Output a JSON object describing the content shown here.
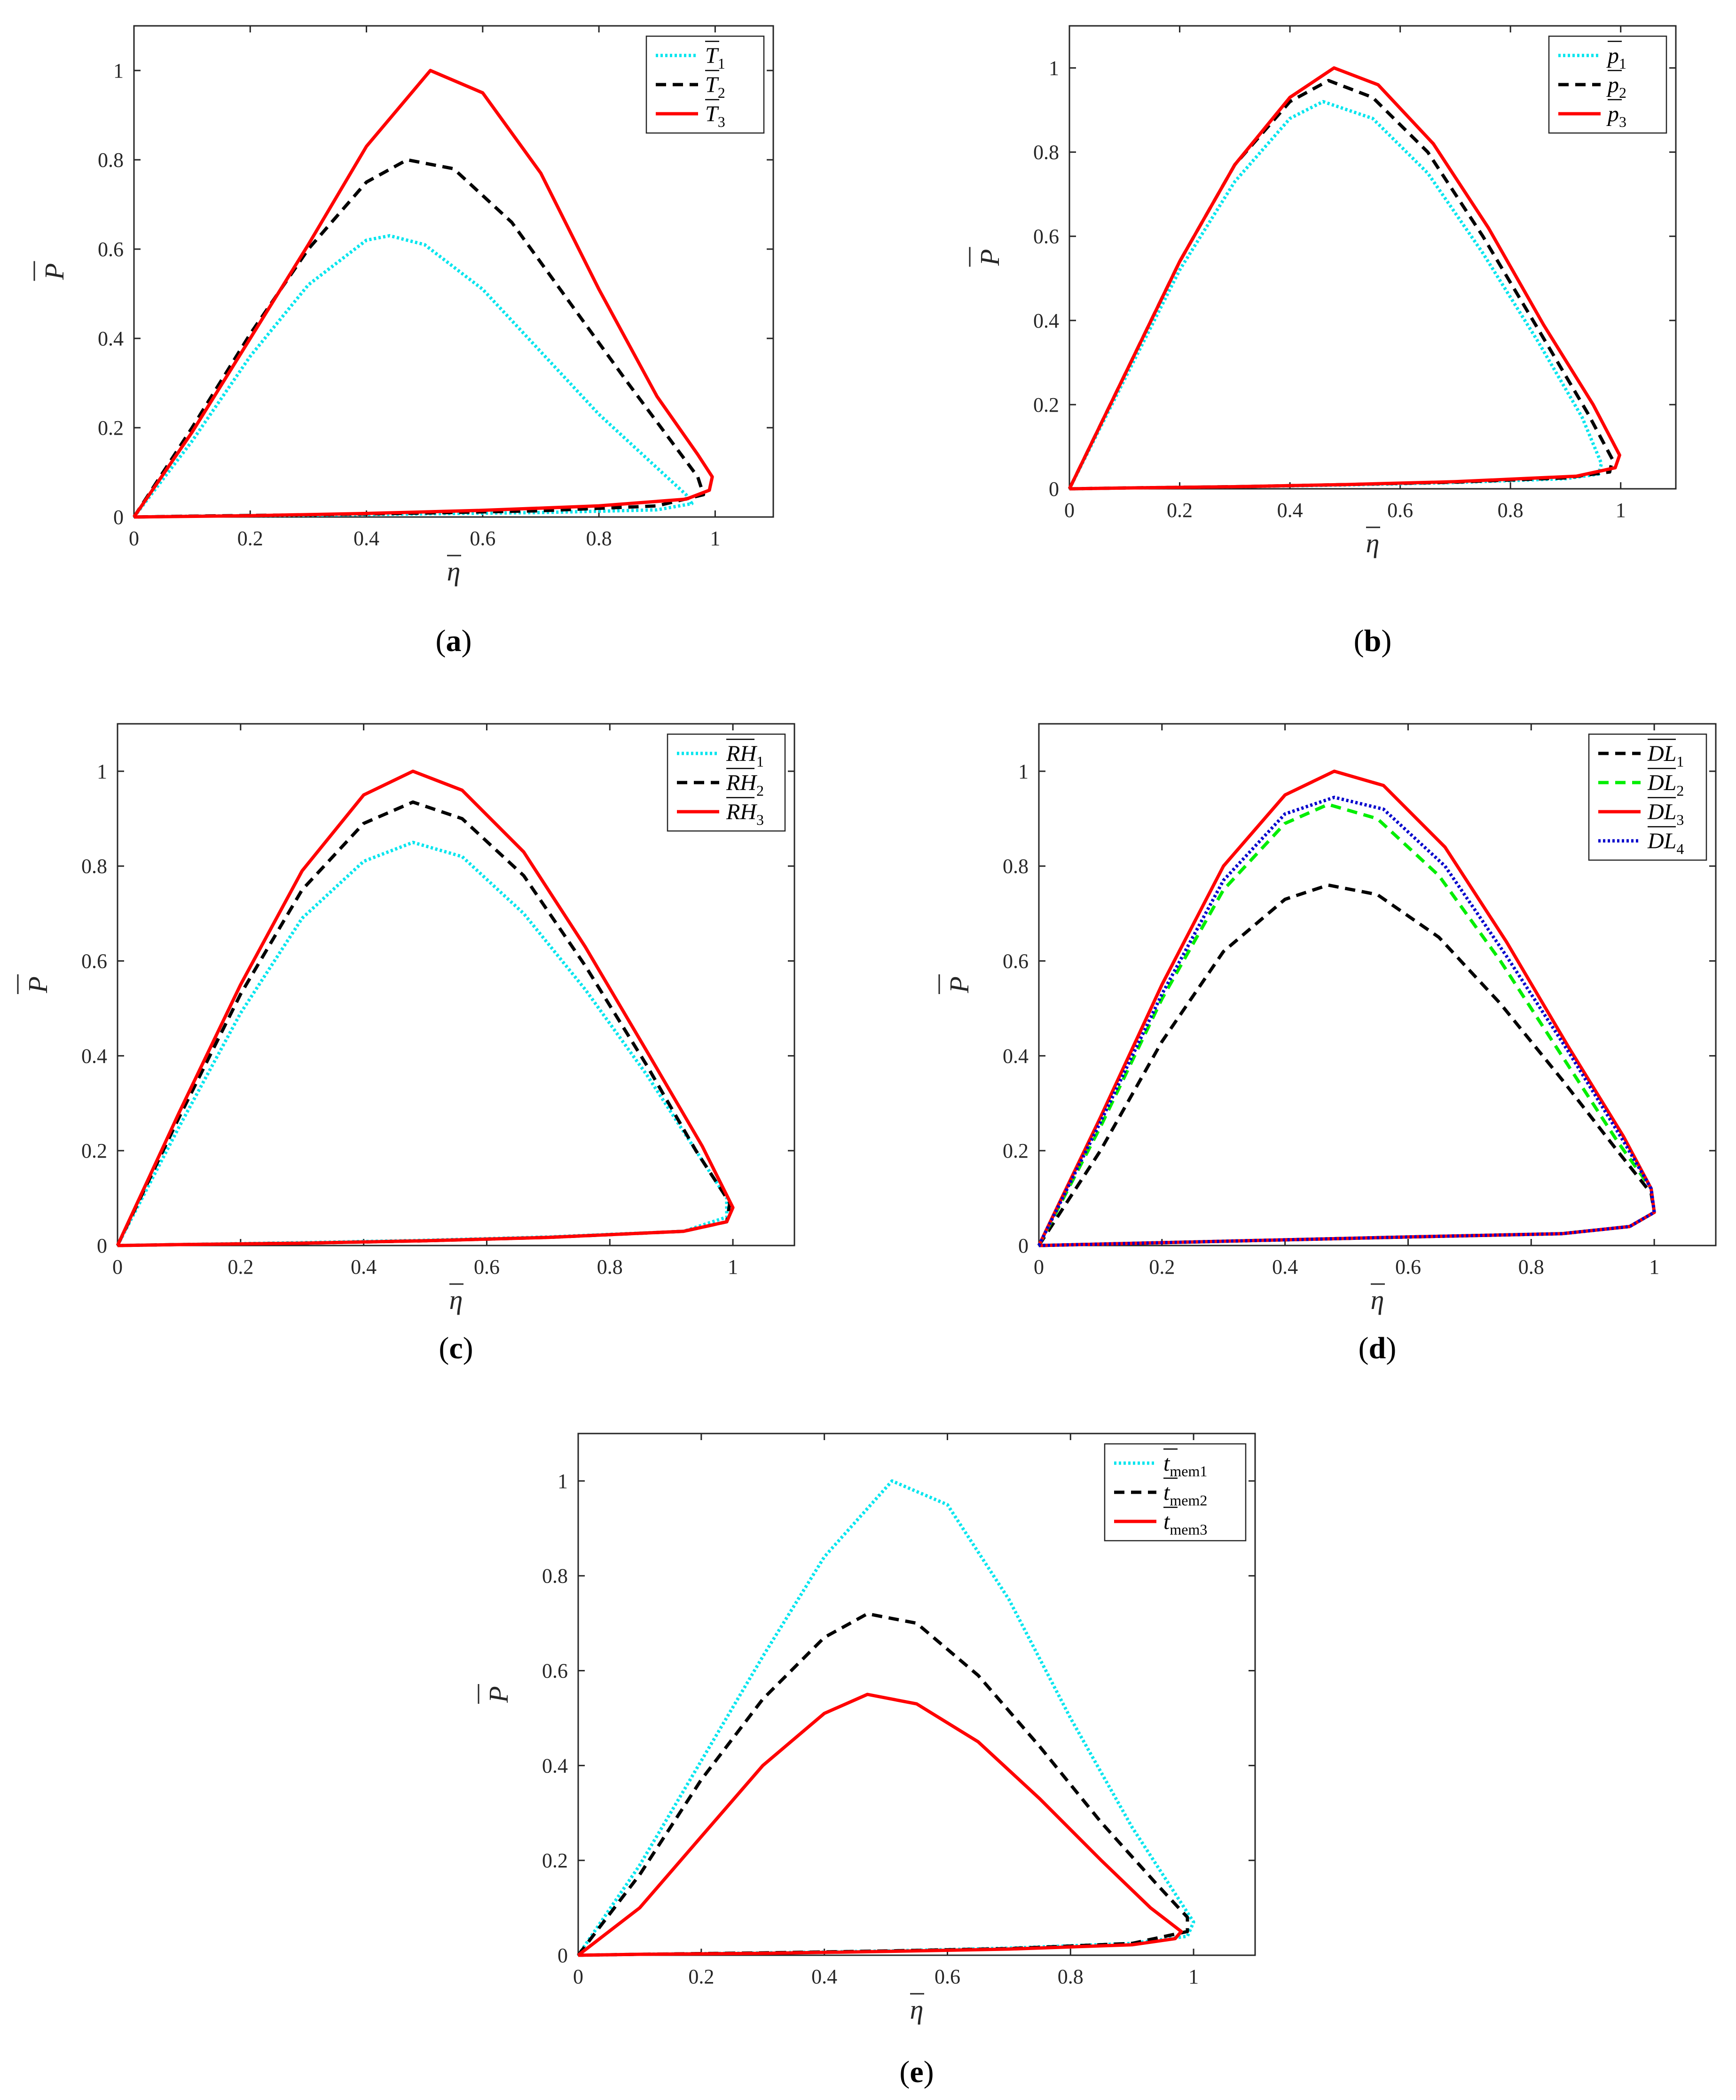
{
  "chart_data": [
    {
      "type": "line",
      "panel_label": "a",
      "xlabel": "η",
      "ylabel": "P",
      "xlim": [
        0,
        1.1
      ],
      "ylim": [
        0,
        1.1
      ],
      "xticks": [
        "0",
        "0.2",
        "0.4",
        "0.6",
        "0.8",
        "1"
      ],
      "yticks": [
        "0",
        "0.2",
        "0.4",
        "0.6",
        "0.8",
        "1"
      ],
      "legend_position": "top-right",
      "series": [
        {
          "name": "T",
          "subscript": "1",
          "color": "#00e5ee",
          "style": "dotted",
          "x": [
            0,
            0.1,
            0.2,
            0.3,
            0.4,
            0.44,
            0.5,
            0.6,
            0.7,
            0.8,
            0.9,
            0.95,
            0.96,
            0.9,
            0.7,
            0.5,
            0.3,
            0.1,
            0
          ],
          "y": [
            0,
            0.17,
            0.36,
            0.52,
            0.62,
            0.63,
            0.61,
            0.51,
            0.37,
            0.23,
            0.11,
            0.05,
            0.03,
            0.016,
            0.01,
            0.007,
            0.004,
            0.002,
            0
          ]
        },
        {
          "name": "T",
          "subscript": "2",
          "color": "#000000",
          "style": "dashed",
          "x": [
            0,
            0.1,
            0.2,
            0.3,
            0.4,
            0.47,
            0.55,
            0.65,
            0.75,
            0.85,
            0.93,
            0.97,
            0.98,
            0.9,
            0.7,
            0.5,
            0.3,
            0.1,
            0
          ],
          "y": [
            0,
            0.2,
            0.41,
            0.6,
            0.75,
            0.8,
            0.78,
            0.66,
            0.48,
            0.3,
            0.16,
            0.09,
            0.05,
            0.025,
            0.014,
            0.009,
            0.005,
            0.002,
            0
          ]
        },
        {
          "name": "T",
          "subscript": "3",
          "color": "#ff0000",
          "style": "solid",
          "x": [
            0,
            0.1,
            0.2,
            0.3,
            0.4,
            0.51,
            0.6,
            0.7,
            0.8,
            0.9,
            0.97,
            0.995,
            0.99,
            0.95,
            0.8,
            0.6,
            0.4,
            0.2,
            0
          ],
          "y": [
            0,
            0.19,
            0.4,
            0.61,
            0.83,
            1.0,
            0.95,
            0.77,
            0.51,
            0.27,
            0.14,
            0.09,
            0.06,
            0.04,
            0.025,
            0.015,
            0.008,
            0.003,
            0
          ]
        }
      ]
    },
    {
      "type": "line",
      "panel_label": "b",
      "xlabel": "η",
      "ylabel": "P",
      "xlim": [
        0,
        1.1
      ],
      "ylim": [
        0,
        1.1
      ],
      "xticks": [
        "0",
        "0.2",
        "0.4",
        "0.6",
        "0.8",
        "1"
      ],
      "yticks": [
        "0",
        "0.2",
        "0.4",
        "0.6",
        "0.8",
        "1"
      ],
      "legend_position": "top-right",
      "series": [
        {
          "name": "p",
          "subscript": "1",
          "color": "#00e5ee",
          "style": "dotted",
          "x": [
            0,
            0.1,
            0.2,
            0.3,
            0.4,
            0.46,
            0.55,
            0.65,
            0.75,
            0.85,
            0.93,
            0.965,
            0.96,
            0.9,
            0.7,
            0.5,
            0.3,
            0.1,
            0
          ],
          "y": [
            0,
            0.26,
            0.52,
            0.73,
            0.88,
            0.92,
            0.88,
            0.75,
            0.56,
            0.35,
            0.17,
            0.06,
            0.035,
            0.024,
            0.015,
            0.009,
            0.005,
            0.002,
            0
          ]
        },
        {
          "name": "p",
          "subscript": "2",
          "color": "#000000",
          "style": "dashed",
          "x": [
            0,
            0.1,
            0.2,
            0.3,
            0.4,
            0.47,
            0.55,
            0.65,
            0.75,
            0.85,
            0.94,
            0.985,
            0.98,
            0.9,
            0.7,
            0.5,
            0.3,
            0.1,
            0
          ],
          "y": [
            0,
            0.27,
            0.54,
            0.77,
            0.92,
            0.97,
            0.93,
            0.8,
            0.6,
            0.38,
            0.18,
            0.07,
            0.04,
            0.026,
            0.016,
            0.01,
            0.005,
            0.002,
            0
          ]
        },
        {
          "name": "p",
          "subscript": "3",
          "color": "#ff0000",
          "style": "solid",
          "x": [
            0,
            0.1,
            0.2,
            0.3,
            0.4,
            0.48,
            0.56,
            0.66,
            0.76,
            0.86,
            0.95,
            0.998,
            0.99,
            0.92,
            0.7,
            0.5,
            0.3,
            0.1,
            0
          ],
          "y": [
            0,
            0.27,
            0.54,
            0.77,
            0.93,
            1.0,
            0.96,
            0.82,
            0.62,
            0.39,
            0.2,
            0.08,
            0.05,
            0.03,
            0.017,
            0.01,
            0.005,
            0.002,
            0
          ]
        }
      ]
    },
    {
      "type": "line",
      "panel_label": "c",
      "xlabel": "η",
      "ylabel": "P",
      "xlim": [
        0,
        1.1
      ],
      "ylim": [
        0,
        1.1
      ],
      "xticks": [
        "0",
        "0.2",
        "0.4",
        "0.6",
        "0.8",
        "1"
      ],
      "yticks": [
        "0",
        "0.2",
        "0.4",
        "0.6",
        "0.8",
        "1"
      ],
      "legend_position": "top-right",
      "series": [
        {
          "name": "RH",
          "subscript": "1",
          "color": "#00e5ee",
          "style": "dotted",
          "x": [
            0,
            0.1,
            0.2,
            0.3,
            0.4,
            0.48,
            0.56,
            0.66,
            0.76,
            0.86,
            0.94,
            0.99,
            0.99,
            0.92,
            0.7,
            0.5,
            0.3,
            0.1,
            0
          ],
          "y": [
            0,
            0.25,
            0.49,
            0.69,
            0.81,
            0.85,
            0.82,
            0.7,
            0.54,
            0.36,
            0.2,
            0.1,
            0.06,
            0.03,
            0.018,
            0.011,
            0.006,
            0.002,
            0
          ]
        },
        {
          "name": "RH",
          "subscript": "2",
          "color": "#000000",
          "style": "dashed",
          "x": [
            0,
            0.1,
            0.2,
            0.3,
            0.4,
            0.48,
            0.56,
            0.66,
            0.76,
            0.86,
            0.94,
            0.995,
            0.99,
            0.92,
            0.7,
            0.5,
            0.3,
            0.1,
            0
          ],
          "y": [
            0,
            0.27,
            0.53,
            0.75,
            0.89,
            0.935,
            0.9,
            0.78,
            0.59,
            0.38,
            0.2,
            0.09,
            0.05,
            0.03,
            0.017,
            0.01,
            0.005,
            0.002,
            0
          ]
        },
        {
          "name": "RH",
          "subscript": "3",
          "color": "#ff0000",
          "style": "solid",
          "x": [
            0,
            0.1,
            0.2,
            0.3,
            0.4,
            0.48,
            0.56,
            0.66,
            0.76,
            0.86,
            0.95,
            1.0,
            0.99,
            0.92,
            0.7,
            0.5,
            0.3,
            0.1,
            0
          ],
          "y": [
            0,
            0.28,
            0.55,
            0.79,
            0.95,
            1.0,
            0.96,
            0.83,
            0.63,
            0.41,
            0.21,
            0.08,
            0.05,
            0.03,
            0.017,
            0.01,
            0.005,
            0.002,
            0
          ]
        }
      ]
    },
    {
      "type": "line",
      "panel_label": "d",
      "xlabel": "η",
      "ylabel": "P",
      "xlim": [
        0,
        1.1
      ],
      "ylim": [
        0,
        1.1
      ],
      "xticks": [
        "0",
        "0.2",
        "0.4",
        "0.6",
        "0.8",
        "1"
      ],
      "yticks": [
        "0",
        "0.2",
        "0.4",
        "0.6",
        "0.8",
        "1"
      ],
      "legend_position": "top-right",
      "series": [
        {
          "name": "DL",
          "subscript": "1",
          "color": "#000000",
          "style": "dashed",
          "x": [
            0,
            0.1,
            0.2,
            0.3,
            0.4,
            0.47,
            0.55,
            0.65,
            0.75,
            0.85,
            0.94,
            0.995,
            1.0,
            0.96,
            0.85,
            0.6,
            0.4,
            0.2,
            0
          ],
          "y": [
            0,
            0.2,
            0.43,
            0.62,
            0.73,
            0.76,
            0.74,
            0.65,
            0.51,
            0.35,
            0.2,
            0.11,
            0.07,
            0.04,
            0.025,
            0.018,
            0.012,
            0.006,
            0
          ]
        },
        {
          "name": "DL",
          "subscript": "2",
          "color": "#00ee00",
          "style": "dashed",
          "x": [
            0,
            0.1,
            0.2,
            0.3,
            0.4,
            0.47,
            0.55,
            0.65,
            0.75,
            0.85,
            0.94,
            0.995,
            1.0,
            0.96,
            0.85,
            0.6,
            0.4,
            0.2,
            0
          ],
          "y": [
            0,
            0.25,
            0.52,
            0.75,
            0.89,
            0.93,
            0.9,
            0.78,
            0.6,
            0.4,
            0.22,
            0.12,
            0.07,
            0.04,
            0.025,
            0.018,
            0.012,
            0.006,
            0
          ]
        },
        {
          "name": "DL",
          "subscript": "3",
          "color": "#ff0000",
          "style": "solid",
          "x": [
            0,
            0.1,
            0.2,
            0.3,
            0.4,
            0.48,
            0.56,
            0.66,
            0.76,
            0.86,
            0.95,
            0.995,
            1.0,
            0.96,
            0.85,
            0.6,
            0.4,
            0.2,
            0
          ],
          "y": [
            0,
            0.27,
            0.55,
            0.8,
            0.95,
            1.0,
            0.97,
            0.84,
            0.64,
            0.42,
            0.23,
            0.12,
            0.07,
            0.04,
            0.025,
            0.018,
            0.012,
            0.006,
            0
          ]
        },
        {
          "name": "DL",
          "subscript": "4",
          "color": "#0000cd",
          "style": "dotted",
          "x": [
            0,
            0.1,
            0.2,
            0.3,
            0.4,
            0.48,
            0.56,
            0.66,
            0.76,
            0.86,
            0.95,
            0.995,
            1.0,
            0.96,
            0.85,
            0.6,
            0.4,
            0.2,
            0
          ],
          "y": [
            0,
            0.26,
            0.53,
            0.77,
            0.91,
            0.945,
            0.92,
            0.8,
            0.61,
            0.41,
            0.22,
            0.12,
            0.07,
            0.04,
            0.025,
            0.018,
            0.012,
            0.006,
            0
          ]
        }
      ]
    },
    {
      "type": "line",
      "panel_label": "e",
      "xlabel": "η",
      "ylabel": "P",
      "xlim": [
        0,
        1.1
      ],
      "ylim": [
        0,
        1.1
      ],
      "xticks": [
        "0",
        "0.2",
        "0.4",
        "0.6",
        "0.8",
        "1"
      ],
      "yticks": [
        "0",
        "0.2",
        "0.4",
        "0.6",
        "0.8",
        "1"
      ],
      "legend_position": "top-right",
      "series": [
        {
          "name": "t",
          "subscript": "mem1",
          "color": "#00e5ee",
          "style": "dotted",
          "x": [
            0,
            0.1,
            0.2,
            0.3,
            0.4,
            0.51,
            0.6,
            0.7,
            0.8,
            0.9,
            0.97,
            1.0,
            0.99,
            0.9,
            0.7,
            0.5,
            0.3,
            0.1,
            0
          ],
          "y": [
            0,
            0.19,
            0.41,
            0.63,
            0.84,
            1.0,
            0.95,
            0.75,
            0.5,
            0.27,
            0.13,
            0.07,
            0.04,
            0.025,
            0.015,
            0.009,
            0.005,
            0.002,
            0
          ]
        },
        {
          "name": "t",
          "subscript": "mem2",
          "color": "#000000",
          "style": "dashed",
          "x": [
            0,
            0.1,
            0.2,
            0.3,
            0.4,
            0.47,
            0.55,
            0.65,
            0.75,
            0.85,
            0.94,
            0.99,
            0.99,
            0.9,
            0.7,
            0.5,
            0.3,
            0.1,
            0
          ],
          "y": [
            0,
            0.17,
            0.37,
            0.54,
            0.67,
            0.72,
            0.7,
            0.59,
            0.44,
            0.28,
            0.15,
            0.08,
            0.05,
            0.025,
            0.014,
            0.009,
            0.005,
            0.002,
            0
          ]
        },
        {
          "name": "t",
          "subscript": "mem3",
          "color": "#ff0000",
          "style": "solid",
          "x": [
            0,
            0.1,
            0.2,
            0.3,
            0.4,
            0.47,
            0.55,
            0.65,
            0.75,
            0.85,
            0.93,
            0.98,
            0.97,
            0.9,
            0.7,
            0.5,
            0.3,
            0.1,
            0
          ],
          "y": [
            0,
            0.1,
            0.25,
            0.4,
            0.51,
            0.55,
            0.53,
            0.45,
            0.33,
            0.2,
            0.1,
            0.05,
            0.035,
            0.022,
            0.013,
            0.008,
            0.004,
            0.002,
            0
          ]
        }
      ]
    }
  ]
}
